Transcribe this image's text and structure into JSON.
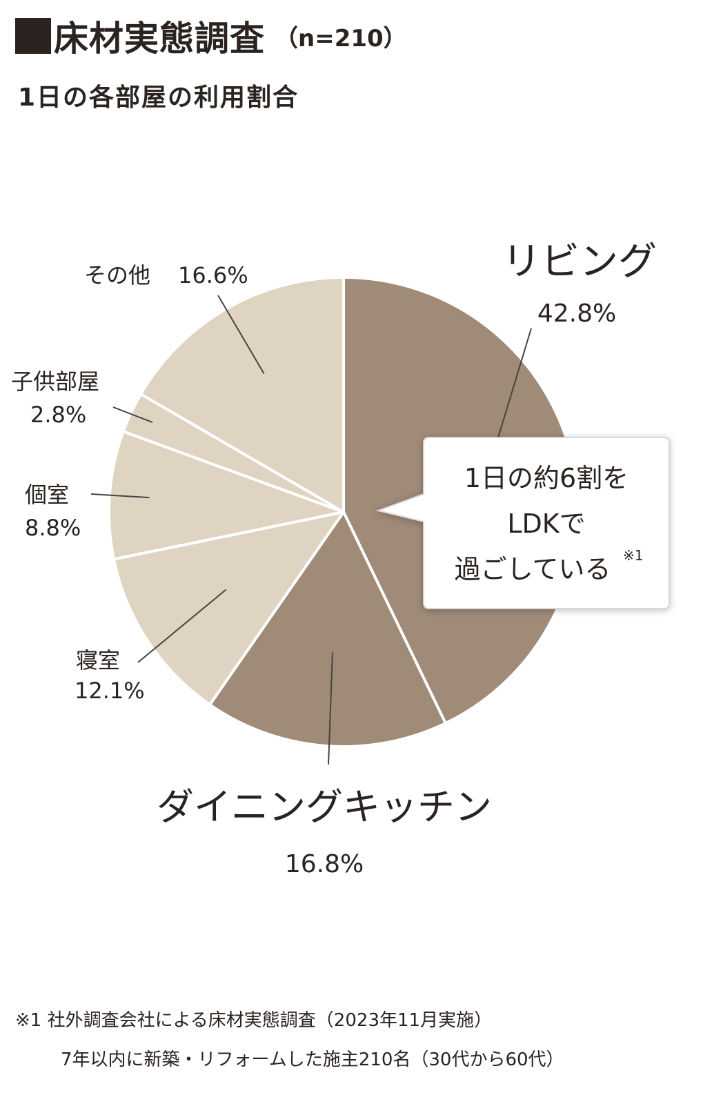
{
  "header": {
    "title": "床材実態調査",
    "sample": "（n=210）",
    "subtitle": "1日の各部屋の利用割合"
  },
  "colors": {
    "ldk": "#a08a78",
    "other": "#dfd4c2",
    "divider": "#ffffff",
    "leader": "#444444",
    "text": "#2a2320"
  },
  "chart_data": {
    "type": "pie",
    "start_angle_deg": 0,
    "direction": "clockwise",
    "slices": [
      {
        "label": "リビング",
        "value": 42.8,
        "value_label": "42.8%",
        "group": "ldk"
      },
      {
        "label": "ダイニングキッチン",
        "value": 16.8,
        "value_label": "16.8%",
        "group": "ldk"
      },
      {
        "label": "寝室",
        "value": 12.1,
        "value_label": "12.1%",
        "group": "other"
      },
      {
        "label": "個室",
        "value": 8.8,
        "value_label": "8.8%",
        "group": "other"
      },
      {
        "label": "子供部屋",
        "value": 2.8,
        "value_label": "2.8%",
        "group": "other"
      },
      {
        "label": "その他",
        "value": 16.6,
        "value_label": "16.6%",
        "group": "other"
      }
    ],
    "callout": {
      "line1": "1日の約6割を",
      "line2": "LDKで",
      "line3": "過ごしている",
      "note_mark": "※1"
    }
  },
  "footnotes": {
    "line1": "※1  社外調査会社による床材実態調査（2023年11月実施）",
    "line2": "7年以内に新築・リフォームした施主210名（30代から60代）"
  }
}
